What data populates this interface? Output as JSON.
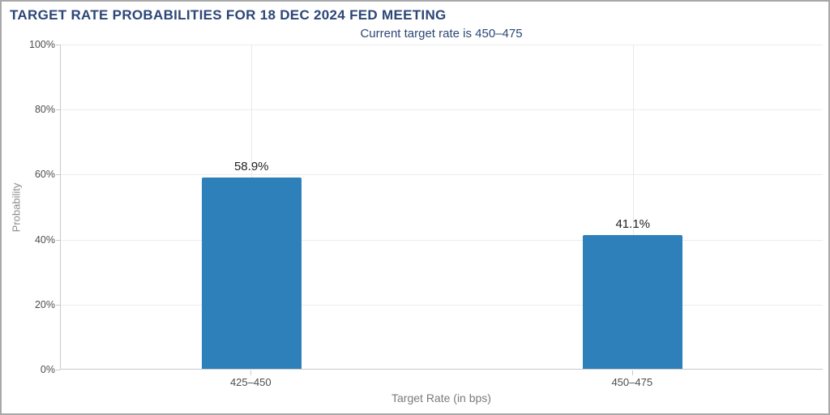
{
  "chart_data": {
    "type": "bar",
    "title": "TARGET RATE PROBABILITIES FOR 18 DEC 2024 FED MEETING",
    "subtitle": "Current target rate is 450–475",
    "categories": [
      "425–450",
      "450–475"
    ],
    "values": [
      58.9,
      41.1
    ],
    "value_labels": [
      "58.9%",
      "41.1%"
    ],
    "xlabel": "Target Rate (in bps)",
    "ylabel": "Probability",
    "ylim": [
      0,
      100
    ],
    "yticks": [
      "0%",
      "20%",
      "40%",
      "60%",
      "80%",
      "100%"
    ],
    "grid": true,
    "legend": "none",
    "bar_color": "#2d80ba",
    "title_color": "#2c4676",
    "value_label_color": "#222222"
  }
}
